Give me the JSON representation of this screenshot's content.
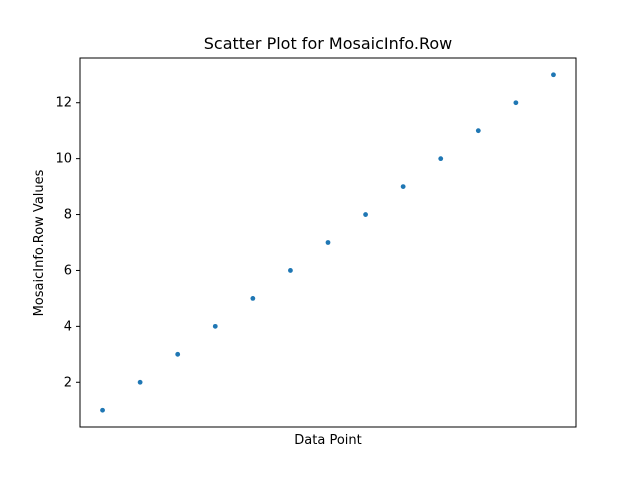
{
  "chart_data": {
    "type": "scatter",
    "title": "Scatter Plot for MosaicInfo.Row",
    "xlabel": "Data Point",
    "ylabel": "MosaicInfo.Row Values",
    "x": [
      1,
      2,
      3,
      4,
      5,
      6,
      7,
      8,
      9,
      10,
      11,
      12,
      13
    ],
    "y": [
      1,
      2,
      3,
      4,
      5,
      6,
      7,
      8,
      9,
      10,
      11,
      12,
      13
    ],
    "xlim": [
      0.4,
      13.6
    ],
    "ylim": [
      0.4,
      13.6
    ],
    "yticks": [
      2,
      4,
      6,
      8,
      10,
      12
    ],
    "show_x_ticks": false,
    "grid": false,
    "point_color": "#1f77b4"
  }
}
